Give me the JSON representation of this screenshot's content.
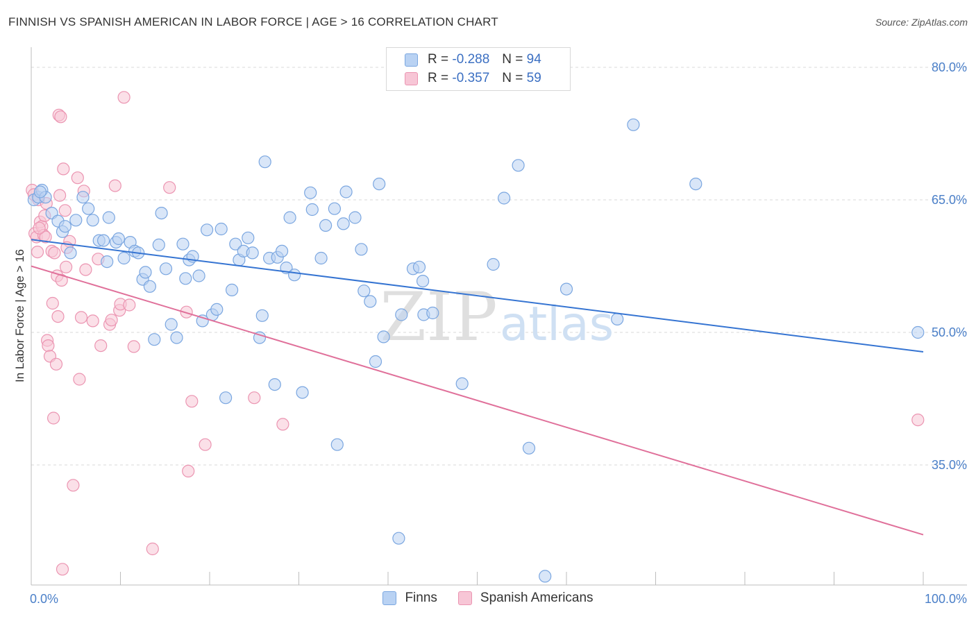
{
  "title": "FINNISH VS SPANISH AMERICAN IN LABOR FORCE | AGE > 16 CORRELATION CHART",
  "source": "Source: ZipAtlas.com",
  "watermark": {
    "zip": "ZIP",
    "atlas": "atlas"
  },
  "legend": {
    "r_label": "R =",
    "n_label": "N =",
    "finns": {
      "r": "-0.288",
      "n": "94"
    },
    "spanish": {
      "r": "-0.357",
      "n": "59"
    }
  },
  "colors": {
    "finns_fill": "#b9d2f3",
    "finns_stroke": "#7aa6e0",
    "finns_line": "#3574d2",
    "spanish_fill": "#f7c6d6",
    "spanish_stroke": "#eb94b1",
    "spanish_line": "#e0709a",
    "grid": "#d9d9d9",
    "tick_label": "#4a7fc8"
  },
  "chart_data": {
    "type": "scatter",
    "title": "FINNISH VS SPANISH AMERICAN IN LABOR FORCE | AGE > 16 CORRELATION CHART",
    "xlabel": "",
    "ylabel": "In Labor Force | Age > 16",
    "xlim": [
      0,
      100
    ],
    "ylim": [
      20,
      83
    ],
    "y_ticks": [
      35.0,
      50.0,
      65.0,
      80.0
    ],
    "y_tick_labels": [
      "35.0%",
      "50.0%",
      "65.0%",
      "80.0%"
    ],
    "x_tick_labels": [
      "0.0%",
      "100.0%"
    ],
    "legend_position": "bottom",
    "series": [
      {
        "name": "Finns",
        "trend": {
          "x": [
            0,
            100
          ],
          "y": [
            60.5,
            47.8
          ]
        },
        "points": [
          [
            0.3,
            65.0
          ],
          [
            0.8,
            65.3
          ],
          [
            1.2,
            66.1
          ],
          [
            1.6,
            65.3
          ],
          [
            2.3,
            63.5
          ],
          [
            3.0,
            62.6
          ],
          [
            3.5,
            61.4
          ],
          [
            3.8,
            62.0
          ],
          [
            4.4,
            59.0
          ],
          [
            5.0,
            62.7
          ],
          [
            5.8,
            65.3
          ],
          [
            6.4,
            64.0
          ],
          [
            6.9,
            62.7
          ],
          [
            7.6,
            60.4
          ],
          [
            8.1,
            60.4
          ],
          [
            8.5,
            58.0
          ],
          [
            8.7,
            63.0
          ],
          [
            9.5,
            60.2
          ],
          [
            9.8,
            60.6
          ],
          [
            10.4,
            58.4
          ],
          [
            11.1,
            60.2
          ],
          [
            11.6,
            59.2
          ],
          [
            12.0,
            59.0
          ],
          [
            12.5,
            56.0
          ],
          [
            12.8,
            56.8
          ],
          [
            13.3,
            55.2
          ],
          [
            13.8,
            49.2
          ],
          [
            14.3,
            59.9
          ],
          [
            14.6,
            63.5
          ],
          [
            15.1,
            57.2
          ],
          [
            15.7,
            50.9
          ],
          [
            16.3,
            49.4
          ],
          [
            17.0,
            60.0
          ],
          [
            17.3,
            56.1
          ],
          [
            17.7,
            58.2
          ],
          [
            18.1,
            58.6
          ],
          [
            18.8,
            56.4
          ],
          [
            19.2,
            51.3
          ],
          [
            19.7,
            61.6
          ],
          [
            20.3,
            52.0
          ],
          [
            20.8,
            52.6
          ],
          [
            21.3,
            61.7
          ],
          [
            21.8,
            42.6
          ],
          [
            22.5,
            54.8
          ],
          [
            22.9,
            60.0
          ],
          [
            23.3,
            58.2
          ],
          [
            23.8,
            59.2
          ],
          [
            24.3,
            60.7
          ],
          [
            24.8,
            59.0
          ],
          [
            25.6,
            49.4
          ],
          [
            25.9,
            51.9
          ],
          [
            26.2,
            69.3
          ],
          [
            26.7,
            58.4
          ],
          [
            27.3,
            44.1
          ],
          [
            27.6,
            58.5
          ],
          [
            28.1,
            59.2
          ],
          [
            28.6,
            57.3
          ],
          [
            29.0,
            63.0
          ],
          [
            29.5,
            56.5
          ],
          [
            30.4,
            43.2
          ],
          [
            31.3,
            65.8
          ],
          [
            31.5,
            63.9
          ],
          [
            32.5,
            58.4
          ],
          [
            33.0,
            62.1
          ],
          [
            34.0,
            64.0
          ],
          [
            34.3,
            37.3
          ],
          [
            35.0,
            62.3
          ],
          [
            35.3,
            65.9
          ],
          [
            36.3,
            63.0
          ],
          [
            37.0,
            59.4
          ],
          [
            37.3,
            54.7
          ],
          [
            38.0,
            53.5
          ],
          [
            39.0,
            66.8
          ],
          [
            38.6,
            46.7
          ],
          [
            39.5,
            49.5
          ],
          [
            41.2,
            26.7
          ],
          [
            41.5,
            52.0
          ],
          [
            42.8,
            57.2
          ],
          [
            43.5,
            57.4
          ],
          [
            44.0,
            52.0
          ],
          [
            43.9,
            55.8
          ],
          [
            45.0,
            52.2
          ],
          [
            48.3,
            44.2
          ],
          [
            51.8,
            57.7
          ],
          [
            53.0,
            65.2
          ],
          [
            54.6,
            68.9
          ],
          [
            55.8,
            36.9
          ],
          [
            57.6,
            22.4
          ],
          [
            60.0,
            54.9
          ],
          [
            65.7,
            51.5
          ],
          [
            67.5,
            73.5
          ],
          [
            74.5,
            66.8
          ],
          [
            99.4,
            50.0
          ],
          [
            1.0,
            65.9
          ]
        ]
      },
      {
        "name": "Spanish Americans",
        "trend": {
          "x": [
            0,
            100
          ],
          "y": [
            57.5,
            27.1
          ]
        },
        "points": [
          [
            0.1,
            66.1
          ],
          [
            0.3,
            65.6
          ],
          [
            0.4,
            61.2
          ],
          [
            0.6,
            60.8
          ],
          [
            0.7,
            59.1
          ],
          [
            0.8,
            65.0
          ],
          [
            1.0,
            62.5
          ],
          [
            1.2,
            62.0
          ],
          [
            1.4,
            61.0
          ],
          [
            1.6,
            60.8
          ],
          [
            1.7,
            64.6
          ],
          [
            1.8,
            49.1
          ],
          [
            1.9,
            48.5
          ],
          [
            2.1,
            47.3
          ],
          [
            2.3,
            59.2
          ],
          [
            2.5,
            40.3
          ],
          [
            2.8,
            46.4
          ],
          [
            2.9,
            56.4
          ],
          [
            3.0,
            51.8
          ],
          [
            3.1,
            74.6
          ],
          [
            3.2,
            65.5
          ],
          [
            3.4,
            55.9
          ],
          [
            3.5,
            23.2
          ],
          [
            3.6,
            68.5
          ],
          [
            3.9,
            57.4
          ],
          [
            4.3,
            60.3
          ],
          [
            4.7,
            32.7
          ],
          [
            5.2,
            67.5
          ],
          [
            5.4,
            44.7
          ],
          [
            5.6,
            51.7
          ],
          [
            5.9,
            66.0
          ],
          [
            6.1,
            57.1
          ],
          [
            6.9,
            51.3
          ],
          [
            7.5,
            58.3
          ],
          [
            7.8,
            48.5
          ],
          [
            8.8,
            50.9
          ],
          [
            9.0,
            51.4
          ],
          [
            9.4,
            66.6
          ],
          [
            9.9,
            52.5
          ],
          [
            10.0,
            53.2
          ],
          [
            10.4,
            76.6
          ],
          [
            11.0,
            53.1
          ],
          [
            11.5,
            48.4
          ],
          [
            13.6,
            25.5
          ],
          [
            15.5,
            66.4
          ],
          [
            17.4,
            52.3
          ],
          [
            17.6,
            34.3
          ],
          [
            18.0,
            42.2
          ],
          [
            19.5,
            37.3
          ],
          [
            25.0,
            42.6
          ],
          [
            28.2,
            39.6
          ],
          [
            99.4,
            40.1
          ],
          [
            4.0,
            59.6
          ],
          [
            2.6,
            59.0
          ],
          [
            1.5,
            63.2
          ],
          [
            3.3,
            74.4
          ],
          [
            0.9,
            61.8
          ],
          [
            2.4,
            53.3
          ],
          [
            3.8,
            63.8
          ]
        ]
      }
    ]
  }
}
